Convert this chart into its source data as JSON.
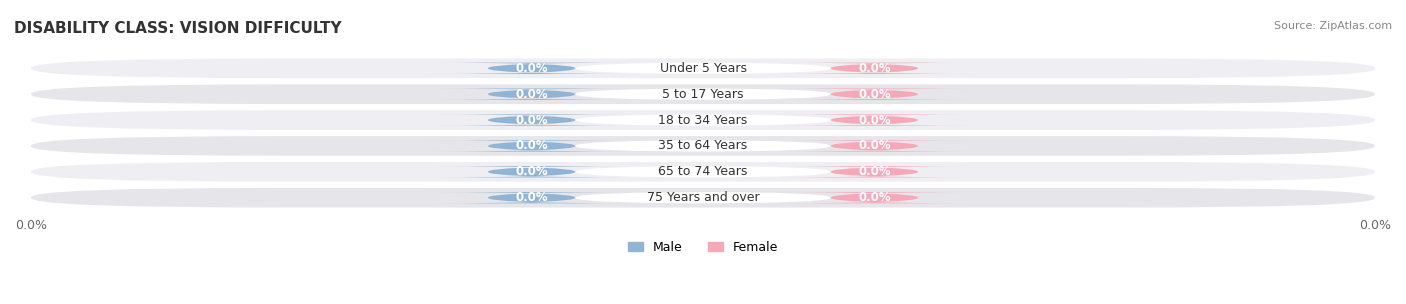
{
  "title": "DISABILITY CLASS: VISION DIFFICULTY",
  "source": "Source: ZipAtlas.com",
  "categories": [
    "Under 5 Years",
    "5 to 17 Years",
    "18 to 34 Years",
    "35 to 64 Years",
    "65 to 74 Years",
    "75 Years and over"
  ],
  "male_values": [
    0.0,
    0.0,
    0.0,
    0.0,
    0.0,
    0.0
  ],
  "female_values": [
    0.0,
    0.0,
    0.0,
    0.0,
    0.0,
    0.0
  ],
  "male_color": "#92b4d4",
  "female_color": "#f4a8b8",
  "row_bg_colors": [
    "#efeff3",
    "#e6e6ea"
  ],
  "title_fontsize": 11,
  "source_fontsize": 8,
  "label_fontsize": 8.5,
  "category_fontsize": 9,
  "xlim": [
    -1.0,
    1.0
  ],
  "tick_label": "0.0%",
  "legend_male": "Male",
  "legend_female": "Female"
}
